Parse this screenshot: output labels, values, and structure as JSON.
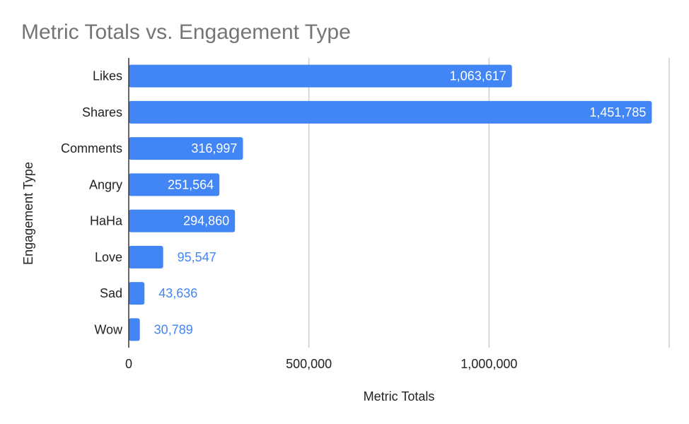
{
  "chart_data": {
    "type": "bar",
    "orientation": "horizontal",
    "title": "Metric Totals vs. Engagement Type",
    "xlabel": "Metric Totals",
    "ylabel": "Engagement Type",
    "categories": [
      "Likes",
      "Shares",
      "Comments",
      "Angry",
      "HaHa",
      "Love",
      "Sad",
      "Wow"
    ],
    "values": [
      1063617,
      1451785,
      316997,
      251564,
      294860,
      95547,
      43636,
      30789
    ],
    "data_labels": [
      "1,063,617",
      "1,451,785",
      "316,997",
      "251,564",
      "294,860",
      "95,547",
      "43,636",
      "30,789"
    ],
    "xlim": [
      0,
      1500000
    ],
    "x_ticks": [
      0,
      500000,
      1000000
    ],
    "x_tick_labels": [
      "0",
      "500,000",
      "1,000,000"
    ],
    "grid": true,
    "bar_color": "#4285f4",
    "label_inside_color": "#ffffff",
    "label_outside_color": "#4285f4",
    "gridline_color": "#cccccc",
    "axis_color": "#333333",
    "title_color": "#757575"
  }
}
